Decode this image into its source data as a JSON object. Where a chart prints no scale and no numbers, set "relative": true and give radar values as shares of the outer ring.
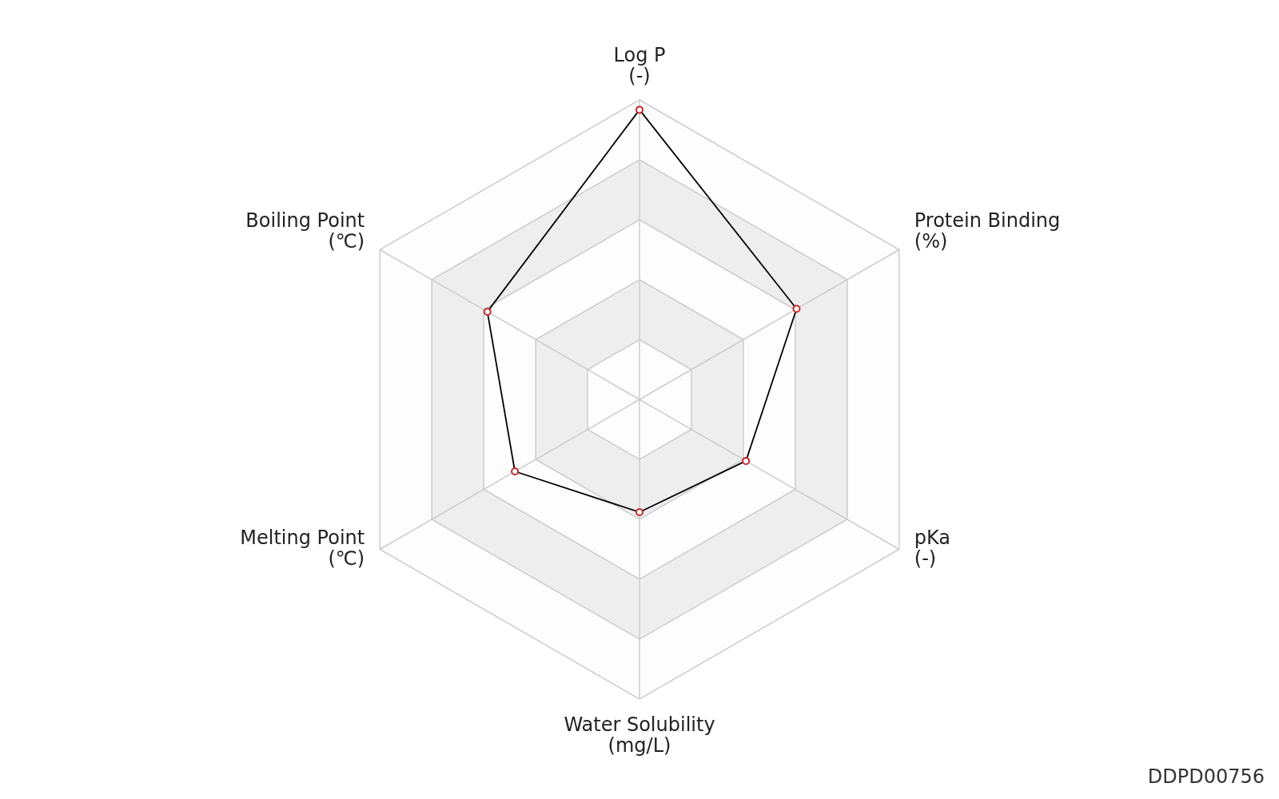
{
  "chart_data": {
    "type": "radar",
    "relative": true,
    "grid": true,
    "marker": "circle",
    "categories": [
      "Log P\n(-)",
      "Protein Binding\n(%)",
      "pKa\n(-)",
      "Water Solubility\n(mg/L)",
      "Melting Point\n(℃)",
      "Boiling Point\n(℃)"
    ],
    "series": [
      {
        "color": "#000000",
        "values": [
          0.967,
          0.605,
          0.41,
          0.376,
          0.48,
          0.586
        ]
      }
    ],
    "annotations": [
      "DDPD00756"
    ]
  }
}
